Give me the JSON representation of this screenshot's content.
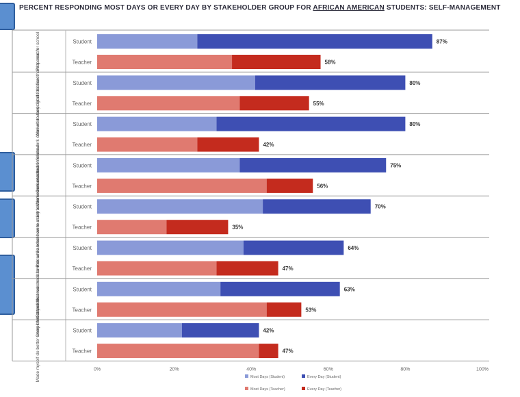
{
  "title": {
    "prefix": "PERCENT RESPONDING MOST DAYS OR EVERY DAY BY STAKEHOLDER GROUP FOR ",
    "underlined": "AFRICAN AMERICAN",
    "suffix": " STUDENTS: SELF-MANAGEMENT"
  },
  "colors": {
    "student_light": "#8a9ad8",
    "student_dark": "#3e4fb3",
    "teacher_light": "#e07a70",
    "teacher_dark": "#c42b1e",
    "tab_blue": "#5b8fd0"
  },
  "chart_data": {
    "type": "bar",
    "orientation": "horizontal",
    "stacked": true,
    "xlim": [
      0,
      100
    ],
    "x_ticks": [
      "0%",
      "20%",
      "40%",
      "60%",
      "80%",
      "100%"
    ],
    "grid": false,
    "legend_position": "bottom",
    "legend": [
      "Most Days (Student)",
      "Every Day (Student)",
      "Most Days (Teacher)",
      "Every Day (Teacher)"
    ],
    "groups": [
      {
        "label": "Prepared for school",
        "bars": [
          {
            "respondent": "Student",
            "most_days": 26,
            "every_day": 61,
            "total_label": "87%"
          },
          {
            "respondent": "Teacher",
            "most_days": 35,
            "every_day": 23,
            "total_label": "58%"
          }
        ]
      },
      {
        "label": "Worked towards goals that are hard to reach",
        "bars": [
          {
            "respondent": "Student",
            "most_days": 41,
            "every_day": 39,
            "total_label": "80%"
          },
          {
            "respondent": "Teacher",
            "most_days": 37,
            "every_day": 18,
            "total_label": "55%"
          }
        ]
      },
      {
        "label": "Concentrated on classwork even when they didn't feel like it",
        "bars": [
          {
            "respondent": "Student",
            "most_days": 31,
            "every_day": 49,
            "total_label": "80%"
          },
          {
            "respondent": "Teacher",
            "most_days": 26,
            "every_day": 16,
            "total_label": "42%"
          }
        ]
      },
      {
        "label": "Worked on a task until finished",
        "bars": [
          {
            "respondent": "Student",
            "most_days": 37,
            "every_day": 38,
            "total_label": "75%"
          },
          {
            "respondent": "Teacher",
            "most_days": 44,
            "every_day": 12,
            "total_label": "56%"
          }
        ]
      },
      {
        "label": "Planned ahead how to study for homework or a test",
        "bars": [
          {
            "respondent": "Student",
            "most_days": 43,
            "every_day": 28,
            "total_label": "70%"
          },
          {
            "respondent": "Teacher",
            "most_days": 18,
            "every_day": 16,
            "total_label": "35%"
          }
        ]
      },
      {
        "label": "Stayed focused on classwork while others were a distraction",
        "bars": [
          {
            "respondent": "Student",
            "most_days": 38,
            "every_day": 26,
            "total_label": "64%"
          },
          {
            "respondent": "Teacher",
            "most_days": 31,
            "every_day": 16,
            "total_label": "47%"
          }
        ]
      },
      {
        "label": "Completed a task that was hard for me",
        "bars": [
          {
            "respondent": "Student",
            "most_days": 32,
            "every_day": 31,
            "total_label": "63%"
          },
          {
            "respondent": "Teacher",
            "most_days": 44,
            "every_day": 9,
            "total_label": "53%"
          }
        ]
      },
      {
        "label": "Made myself do better when I felt stressed",
        "bars": [
          {
            "respondent": "Student",
            "most_days": 22,
            "every_day": 20,
            "total_label": "42%"
          },
          {
            "respondent": "Teacher",
            "most_days": 42,
            "every_day": 5,
            "total_label": "47%"
          }
        ]
      }
    ]
  }
}
